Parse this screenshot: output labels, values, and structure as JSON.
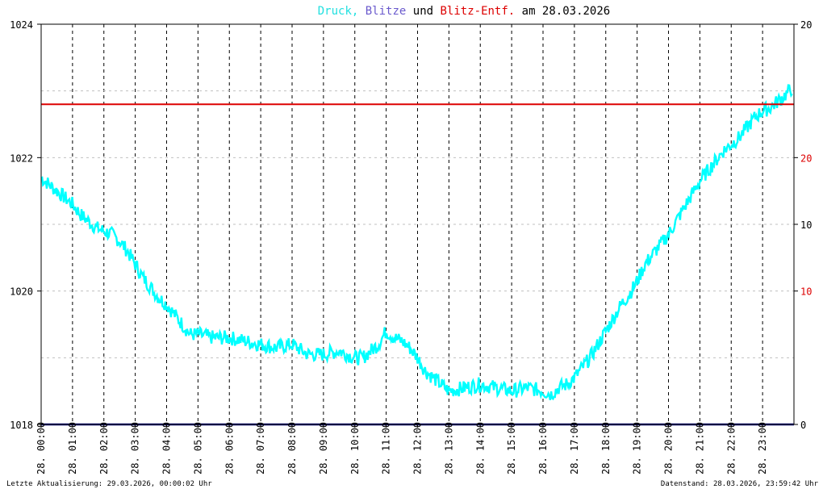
{
  "chart_data": {
    "type": "line",
    "title_parts": [
      {
        "text": "Druck,",
        "color": "#22e0e0"
      },
      {
        "text": "Blitze",
        "color": "#6a5acd"
      },
      {
        "text": "und",
        "color": "#000000"
      },
      {
        "text": "Blitz-Entf.",
        "color": "#dd0000"
      },
      {
        "text": "am 28.03.2026",
        "color": "#000000"
      }
    ],
    "y_left": {
      "min": 1018,
      "max": 1024,
      "ticks": [
        1018,
        1020,
        1022,
        1024
      ]
    },
    "y_right_labels": [
      {
        "value": 20,
        "at_pressure": 1024,
        "color": "#000000"
      },
      {
        "value": 20,
        "at_pressure": 1022,
        "color": "#dd0000"
      },
      {
        "value": 10,
        "at_pressure": 1021,
        "color": "#000000"
      },
      {
        "value": 10,
        "at_pressure": 1020,
        "color": "#dd0000"
      },
      {
        "value": 0,
        "at_pressure": 1018,
        "color": "#000000"
      }
    ],
    "x_labels": [
      "28. 00:00",
      "28. 01:00",
      "28. 02:00",
      "28. 03:00",
      "28. 04:00",
      "28. 05:00",
      "28. 06:00",
      "28. 07:00",
      "28. 08:00",
      "28. 09:00",
      "28. 10:00",
      "28. 11:00",
      "28. 12:00",
      "28. 13:00",
      "28. 14:00",
      "28. 15:00",
      "28. 16:00",
      "28. 17:00",
      "28. 18:00",
      "28. 19:00",
      "28. 20:00",
      "28. 21:00",
      "28. 22:00",
      "28. 23:00"
    ],
    "grid": true,
    "series": [
      {
        "key": "druck",
        "color": "#00ffff",
        "hours": [
          0,
          0.25,
          0.5,
          0.75,
          1,
          1.25,
          1.5,
          1.75,
          2,
          2.25,
          2.5,
          2.75,
          3,
          3.25,
          3.5,
          3.75,
          4,
          4.25,
          4.5,
          4.75,
          5,
          5.5,
          6,
          6.5,
          7,
          7.5,
          8,
          8.5,
          9,
          9.5,
          10,
          10.25,
          10.5,
          10.75,
          11,
          11.25,
          11.5,
          11.75,
          12,
          12.25,
          12.5,
          12.75,
          13,
          13.5,
          14,
          14.5,
          15,
          15.5,
          16,
          16.25,
          16.5,
          16.75,
          17,
          17.25,
          17.5,
          17.75,
          18,
          18.25,
          18.5,
          18.75,
          19,
          19.25,
          19.5,
          19.75,
          20,
          20.25,
          20.5,
          20.75,
          21,
          21.25,
          21.5,
          21.75,
          22,
          22.25,
          22.5,
          22.75,
          23,
          23.25,
          23.5,
          23.75,
          23.95
        ],
        "values": [
          1021.7,
          1021.6,
          1021.5,
          1021.4,
          1021.3,
          1021.15,
          1021.05,
          1020.95,
          1020.9,
          1020.85,
          1020.75,
          1020.6,
          1020.4,
          1020.2,
          1020.05,
          1019.9,
          1019.8,
          1019.65,
          1019.5,
          1019.35,
          1019.35,
          1019.3,
          1019.3,
          1019.25,
          1019.2,
          1019.15,
          1019.2,
          1019.05,
          1019.05,
          1019.1,
          1019.0,
          1019.0,
          1019.1,
          1019.2,
          1019.4,
          1019.3,
          1019.25,
          1019.15,
          1019.0,
          1018.8,
          1018.7,
          1018.6,
          1018.5,
          1018.55,
          1018.6,
          1018.55,
          1018.5,
          1018.55,
          1018.5,
          1018.45,
          1018.55,
          1018.6,
          1018.7,
          1018.85,
          1019.0,
          1019.2,
          1019.4,
          1019.6,
          1019.8,
          1019.95,
          1020.15,
          1020.4,
          1020.55,
          1020.7,
          1020.85,
          1021.05,
          1021.25,
          1021.45,
          1021.65,
          1021.8,
          1021.95,
          1022.1,
          1022.2,
          1022.3,
          1022.45,
          1022.6,
          1022.7,
          1022.75,
          1022.85,
          1022.95,
          1023.05
        ]
      },
      {
        "key": "blitz_entf",
        "color": "#dd0000",
        "constant": 1022.8
      },
      {
        "key": "blitze",
        "color": "#000080",
        "constant": 0
      }
    ]
  },
  "footer": {
    "left": "Letzte Aktualisierung: 29.03.2026, 00:00:02 Uhr",
    "right": "Datenstand: 28.03.2026, 23:59:42 Uhr"
  }
}
